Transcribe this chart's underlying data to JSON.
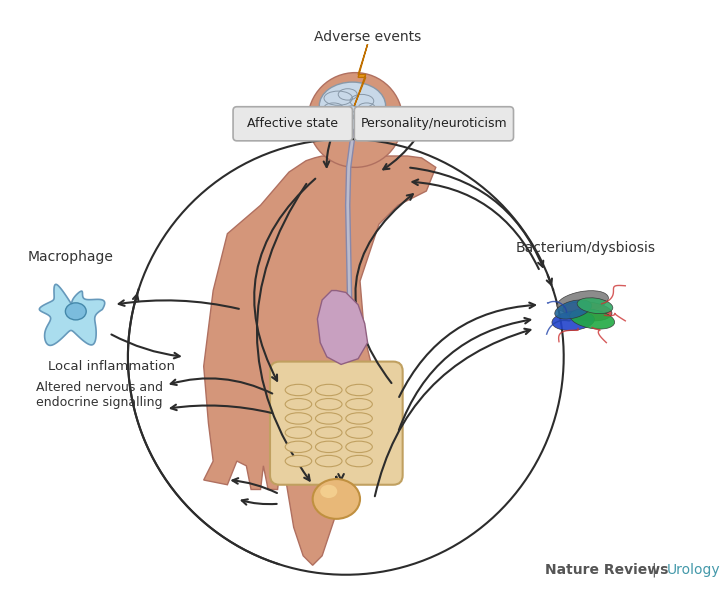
{
  "title": "",
  "background_color": "#ffffff",
  "adverse_events_text": "Adverse events",
  "affective_state_text": "Affective state",
  "personality_text": "Personality/neuroticism",
  "macrophage_text": "Macrophage",
  "local_inflammation_text": "Local inflammation",
  "altered_nervous_text": "Altered nervous and\nendocrine signalling",
  "bacterium_text": "Bacterium/dysbiosis",
  "nature_reviews_text": "Nature Reviews",
  "urology_text": "Urology",
  "box_color": "#d0d0d0",
  "box_edge_color": "#aaaaaa",
  "arrow_color": "#2c2c2c",
  "lightning_color_main": "#f0a020",
  "lightning_color_dark": "#c07000",
  "skin_color": "#d4967a",
  "brain_color_light": "#c8d8e8",
  "brain_color_dark": "#8898a8",
  "gut_color": "#e8d0a0",
  "bladder_color": "#e8b060",
  "macrophage_color": "#80c8e8",
  "figsize": [
    7.22,
    6.0
  ],
  "dpi": 100
}
